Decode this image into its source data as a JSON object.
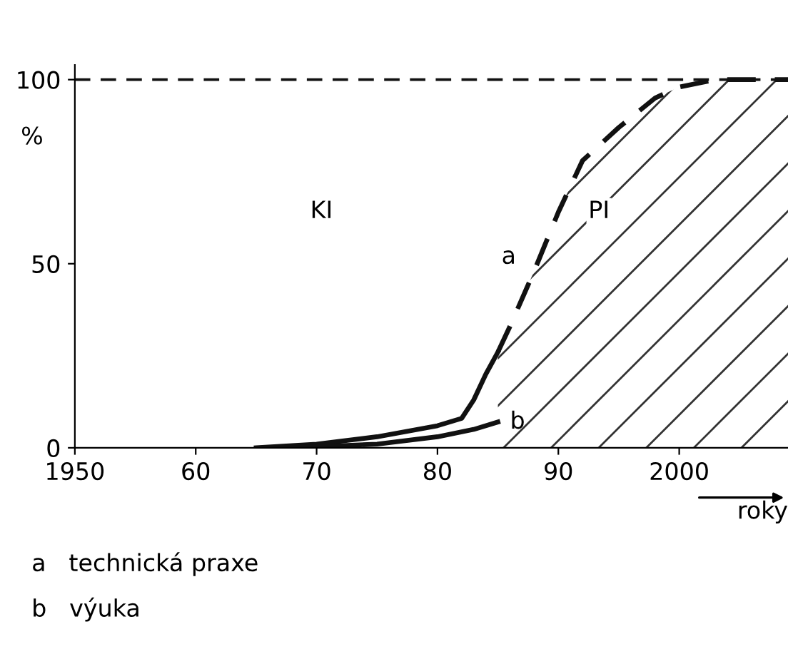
{
  "chart_data": {
    "type": "line",
    "xlabel": "roky",
    "ylabel": "%",
    "xlim": [
      1950,
      2009
    ],
    "ylim": [
      0,
      104
    ],
    "xticks": [
      {
        "value": 1950,
        "label": "1950"
      },
      {
        "value": 1960,
        "label": "60"
      },
      {
        "value": 1970,
        "label": "70"
      },
      {
        "value": 1980,
        "label": "80"
      },
      {
        "value": 1990,
        "label": "90"
      },
      {
        "value": 2000,
        "label": "2000"
      }
    ],
    "yticks": [
      0,
      50,
      100
    ],
    "grid": false,
    "legend": false,
    "series": [
      {
        "color": "#111111",
        "line_style": "solid",
        "x": [
          1965,
          1970,
          1975,
          1980,
          1982,
          1983,
          1984,
          1985
        ],
        "values": [
          0,
          1,
          3,
          6,
          8,
          13,
          20,
          26
        ]
      },
      {
        "name": "a",
        "color": "#111111",
        "line_style": "dashed",
        "x": [
          1985,
          1986,
          1988,
          1990,
          1992,
          1995,
          1998,
          2000,
          2003,
          2009
        ],
        "values": [
          26,
          33,
          48,
          64,
          78,
          87,
          95,
          98,
          100,
          100
        ]
      },
      {
        "name": "b",
        "color": "#111111",
        "line_style": "solid",
        "x": [
          1968,
          1970,
          1975,
          1980,
          1983,
          1985
        ],
        "values": [
          0,
          0.3,
          1,
          3,
          5,
          7
        ]
      }
    ],
    "ref_lines": [
      {
        "axis": "y",
        "value": 100,
        "color": "#111111",
        "line_style": "dashed"
      }
    ],
    "annotations": [
      "KI",
      "PI",
      "a   technická praxe",
      "b   výuka"
    ]
  }
}
